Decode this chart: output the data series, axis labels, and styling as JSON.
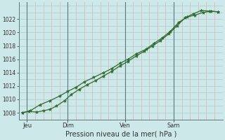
{
  "xlabel": "Pression niveau de la mer( hPa )",
  "background_color": "#cce8e8",
  "plot_bg_color": "#cce8e8",
  "grid_color": "#aacccc",
  "grid_color_red": "#ddb0b0",
  "line_color": "#2d6a2d",
  "marker_color": "#2d6a2d",
  "ylim": [
    1007.0,
    1024.5
  ],
  "yticks": [
    1008,
    1010,
    1012,
    1014,
    1016,
    1018,
    1020,
    1022
  ],
  "xtick_labels": [
    "Jeu",
    "Dim",
    "Ven",
    "Sam"
  ],
  "xtick_positions": [
    0.5,
    3.0,
    6.5,
    9.5
  ],
  "xlim": [
    0,
    12.5
  ],
  "vline_positions": [
    0.5,
    3.0,
    6.5,
    9.5
  ],
  "vline_color": "#607878",
  "line1_x": [
    0.2,
    0.6,
    1.1,
    1.5,
    1.9,
    2.3,
    2.8,
    3.2,
    3.7,
    4.2,
    4.7,
    5.2,
    5.7,
    6.2,
    6.7,
    7.2,
    7.7,
    8.2,
    8.7,
    9.2,
    9.7,
    10.2,
    10.7,
    11.2,
    11.7,
    12.2
  ],
  "line1_y": [
    1008.0,
    1008.2,
    1008.1,
    1008.3,
    1008.5,
    1009.0,
    1009.8,
    1010.7,
    1011.5,
    1012.2,
    1012.8,
    1013.5,
    1014.2,
    1015.0,
    1015.7,
    1016.5,
    1017.2,
    1018.0,
    1018.8,
    1019.8,
    1021.0,
    1022.2,
    1022.8,
    1023.3,
    1023.2,
    1023.1
  ],
  "line2_x": [
    0.2,
    0.7,
    1.3,
    1.9,
    2.5,
    3.0,
    3.5,
    4.0,
    4.6,
    5.2,
    5.7,
    6.2,
    6.7,
    7.2,
    7.8,
    8.3,
    8.8,
    9.3,
    9.8,
    10.3,
    10.8,
    11.3,
    11.8,
    12.2
  ],
  "line2_y": [
    1008.0,
    1008.3,
    1009.2,
    1009.8,
    1010.5,
    1011.2,
    1011.8,
    1012.6,
    1013.3,
    1014.0,
    1014.6,
    1015.4,
    1016.0,
    1016.8,
    1017.5,
    1018.4,
    1019.2,
    1020.2,
    1021.5,
    1022.3,
    1022.6,
    1023.0,
    1023.2,
    1023.1
  ]
}
